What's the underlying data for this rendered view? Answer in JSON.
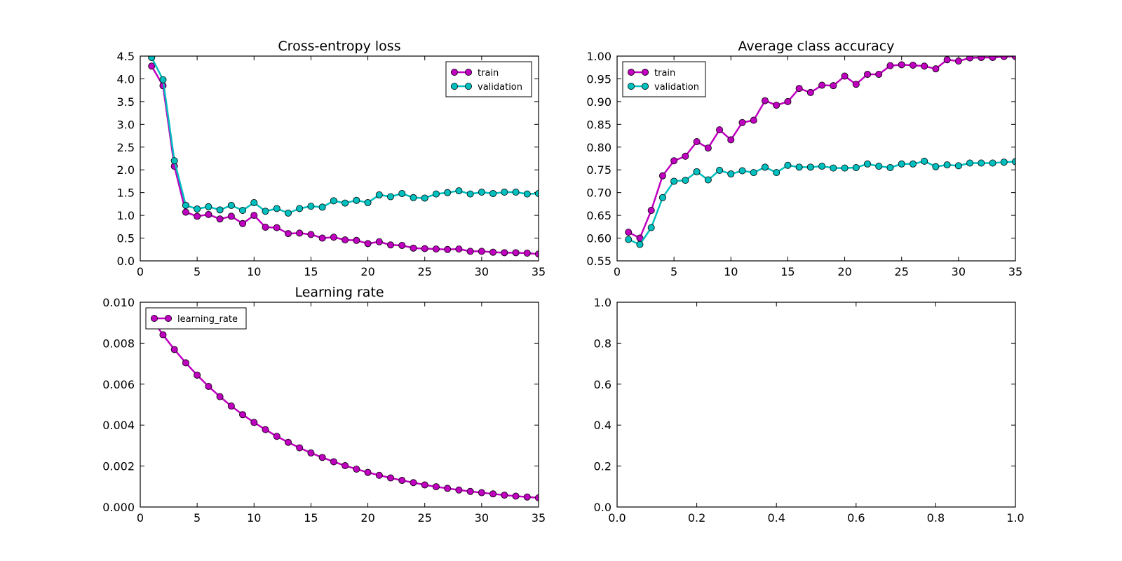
{
  "chart_data": [
    {
      "type": "line",
      "title": "Cross-entropy loss",
      "xlabel": "",
      "ylabel": "",
      "xlim": [
        0,
        35
      ],
      "ylim": [
        0,
        4.5
      ],
      "xticks": [
        "0",
        "5",
        "10",
        "15",
        "20",
        "25",
        "30",
        "35"
      ],
      "yticks": [
        "0.0",
        "0.5",
        "1.0",
        "1.5",
        "2.0",
        "2.5",
        "3.0",
        "3.5",
        "4.0",
        "4.5"
      ],
      "grid": false,
      "legend": "top-right",
      "x": [
        1,
        2,
        3,
        4,
        5,
        6,
        7,
        8,
        9,
        10,
        11,
        12,
        13,
        14,
        15,
        16,
        17,
        18,
        19,
        20,
        21,
        22,
        23,
        24,
        25,
        26,
        27,
        28,
        29,
        30,
        31,
        32,
        33,
        34,
        35
      ],
      "series": [
        {
          "name": "train",
          "color": "#bf00bf",
          "values": [
            4.28,
            3.85,
            2.08,
            1.07,
            0.98,
            1.02,
            0.92,
            0.98,
            0.82,
            1.0,
            0.74,
            0.73,
            0.6,
            0.61,
            0.58,
            0.5,
            0.52,
            0.46,
            0.45,
            0.38,
            0.42,
            0.35,
            0.34,
            0.28,
            0.27,
            0.26,
            0.25,
            0.26,
            0.21,
            0.21,
            0.19,
            0.18,
            0.18,
            0.17,
            0.15
          ]
        },
        {
          "name": "validation",
          "color": "#00bfbf",
          "values": [
            4.47,
            3.98,
            2.2,
            1.22,
            1.14,
            1.19,
            1.12,
            1.22,
            1.11,
            1.28,
            1.09,
            1.15,
            1.05,
            1.15,
            1.2,
            1.18,
            1.32,
            1.27,
            1.33,
            1.28,
            1.45,
            1.41,
            1.48,
            1.39,
            1.38,
            1.47,
            1.5,
            1.54,
            1.47,
            1.51,
            1.48,
            1.51,
            1.51,
            1.47,
            1.48
          ]
        }
      ]
    },
    {
      "type": "line",
      "title": "Average class accuracy",
      "xlabel": "",
      "ylabel": "",
      "xlim": [
        0,
        35
      ],
      "ylim": [
        0.55,
        1.0
      ],
      "xticks": [
        "0",
        "5",
        "10",
        "15",
        "20",
        "25",
        "30",
        "35"
      ],
      "yticks": [
        "0.55",
        "0.60",
        "0.65",
        "0.70",
        "0.75",
        "0.80",
        "0.85",
        "0.90",
        "0.95",
        "1.00"
      ],
      "grid": false,
      "legend": "top-left",
      "x": [
        1,
        2,
        3,
        4,
        5,
        6,
        7,
        8,
        9,
        10,
        11,
        12,
        13,
        14,
        15,
        16,
        17,
        18,
        19,
        20,
        21,
        22,
        23,
        24,
        25,
        26,
        27,
        28,
        29,
        30,
        31,
        32,
        33,
        34,
        35
      ],
      "series": [
        {
          "name": "train",
          "color": "#bf00bf",
          "values": [
            0.613,
            0.6,
            0.661,
            0.737,
            0.77,
            0.78,
            0.812,
            0.798,
            0.838,
            0.816,
            0.854,
            0.859,
            0.902,
            0.892,
            0.9,
            0.929,
            0.92,
            0.936,
            0.935,
            0.956,
            0.938,
            0.96,
            0.96,
            0.979,
            0.981,
            0.98,
            0.978,
            0.972,
            0.992,
            0.989,
            0.996,
            0.997,
            0.997,
            0.999,
            0.999
          ]
        },
        {
          "name": "validation",
          "color": "#00bfbf",
          "values": [
            0.597,
            0.586,
            0.623,
            0.689,
            0.725,
            0.727,
            0.746,
            0.728,
            0.749,
            0.741,
            0.748,
            0.744,
            0.756,
            0.744,
            0.76,
            0.756,
            0.756,
            0.758,
            0.754,
            0.754,
            0.755,
            0.763,
            0.758,
            0.755,
            0.763,
            0.763,
            0.769,
            0.757,
            0.761,
            0.759,
            0.765,
            0.765,
            0.765,
            0.767,
            0.768
          ]
        }
      ]
    },
    {
      "type": "line",
      "title": "Learning rate",
      "xlabel": "",
      "ylabel": "",
      "xlim": [
        0,
        35
      ],
      "ylim": [
        0,
        0.01
      ],
      "xticks": [
        "0",
        "5",
        "10",
        "15",
        "20",
        "25",
        "30",
        "35"
      ],
      "yticks": [
        "0.000",
        "0.002",
        "0.004",
        "0.006",
        "0.008",
        "0.010"
      ],
      "grid": false,
      "legend": "top-left",
      "x": [
        1,
        2,
        3,
        4,
        5,
        6,
        7,
        8,
        9,
        10,
        11,
        12,
        13,
        14,
        15,
        16,
        17,
        18,
        19,
        20,
        21,
        22,
        23,
        24,
        25,
        26,
        27,
        28,
        29,
        30,
        31,
        32,
        33,
        34,
        35
      ],
      "series": [
        {
          "name": "learning_rate",
          "color": "#bf00bf",
          "values": [
            0.0092,
            0.00841,
            0.00769,
            0.00704,
            0.00644,
            0.00589,
            0.00539,
            0.00493,
            0.00451,
            0.00413,
            0.00378,
            0.00345,
            0.00316,
            0.00289,
            0.00264,
            0.00242,
            0.00221,
            0.00202,
            0.00185,
            0.00169,
            0.00155,
            0.00142,
            0.0013,
            0.00119,
            0.00108,
            0.00099,
            0.00091,
            0.00083,
            0.00076,
            0.0007,
            0.00064,
            0.00058,
            0.00053,
            0.00049,
            0.00045
          ]
        }
      ]
    },
    {
      "type": "line",
      "title": "",
      "xlabel": "",
      "ylabel": "",
      "xlim": [
        0,
        1
      ],
      "ylim": [
        0,
        1
      ],
      "xticks": [
        "0.0",
        "0.2",
        "0.4",
        "0.6",
        "0.8",
        "1.0"
      ],
      "yticks": [
        "0.0",
        "0.2",
        "0.4",
        "0.6",
        "0.8",
        "1.0"
      ],
      "grid": false,
      "legend": "none",
      "series": []
    }
  ]
}
